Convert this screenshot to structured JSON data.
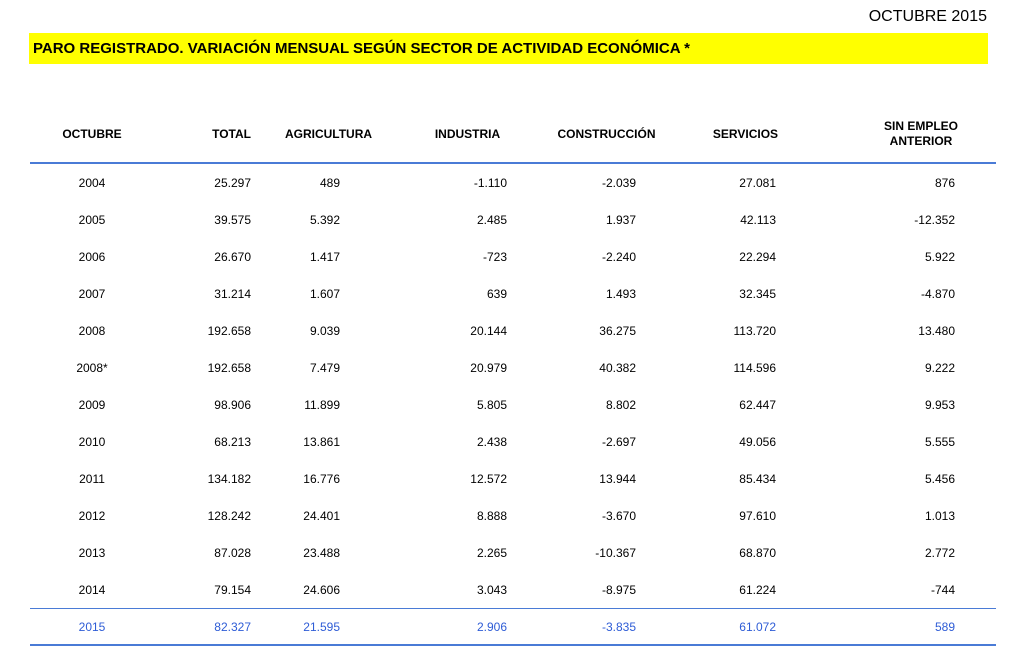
{
  "header": {
    "period": "OCTUBRE 2015",
    "title": "PARO REGISTRADO. VARIACIÓN MENSUAL SEGÚN SECTOR DE ACTIVIDAD ECONÓMICA *"
  },
  "colors": {
    "title_background": "#ffff00",
    "rule": "#4a7bd6",
    "highlight_text": "#2e5cd6"
  },
  "table": {
    "columns": [
      "OCTUBRE",
      "TOTAL",
      "AGRICULTURA",
      "INDUSTRIA",
      "CONSTRUCCIÓN",
      "SERVICIOS",
      "SIN EMPLEO ANTERIOR"
    ],
    "rows": [
      [
        "2004",
        "25.297",
        "489",
        "-1.110",
        "-2.039",
        "27.081",
        "876"
      ],
      [
        "2005",
        "39.575",
        "5.392",
        "2.485",
        "1.937",
        "42.113",
        "-12.352"
      ],
      [
        "2006",
        "26.670",
        "1.417",
        "-723",
        "-2.240",
        "22.294",
        "5.922"
      ],
      [
        "2007",
        "31.214",
        "1.607",
        "639",
        "1.493",
        "32.345",
        "-4.870"
      ],
      [
        "2008",
        "192.658",
        "9.039",
        "20.144",
        "36.275",
        "113.720",
        "13.480"
      ],
      [
        "2008*",
        "192.658",
        "7.479",
        "20.979",
        "40.382",
        "114.596",
        "9.222"
      ],
      [
        "2009",
        "98.906",
        "11.899",
        "5.805",
        "8.802",
        "62.447",
        "9.953"
      ],
      [
        "2010",
        "68.213",
        "13.861",
        "2.438",
        "-2.697",
        "49.056",
        "5.555"
      ],
      [
        "2011",
        "134.182",
        "16.776",
        "12.572",
        "13.944",
        "85.434",
        "5.456"
      ],
      [
        "2012",
        "128.242",
        "24.401",
        "8.888",
        "-3.670",
        "97.610",
        "1.013"
      ],
      [
        "2013",
        "87.028",
        "23.488",
        "2.265",
        "-10.367",
        "68.870",
        "2.772"
      ],
      [
        "2014",
        "79.154",
        "24.606",
        "3.043",
        "-8.975",
        "61.224",
        "-744"
      ],
      [
        "2015",
        "82.327",
        "21.595",
        "2.906",
        "-3.835",
        "61.072",
        "589"
      ]
    ],
    "highlight_row": 12
  }
}
